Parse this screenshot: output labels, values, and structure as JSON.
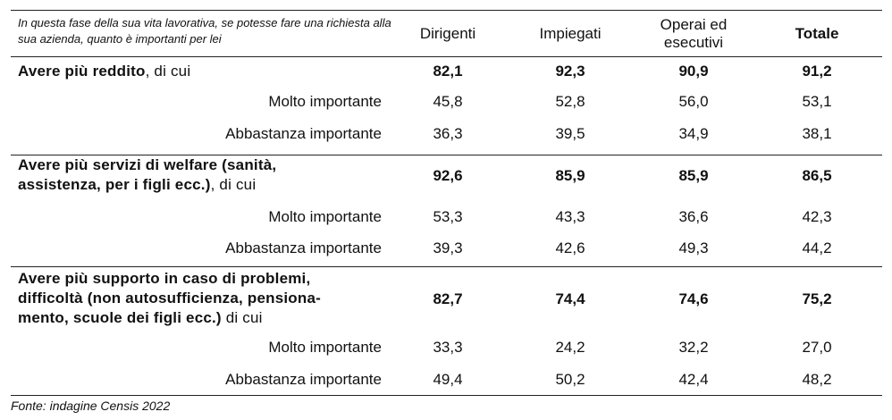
{
  "header": {
    "intro": "In questa fase della sua vita lavorativa, se potesse fare una richiesta alla sua azienda, quanto è importanti per lei",
    "columns": [
      "Dirigenti",
      "Impiegati",
      "Operai ed esecutivi",
      "Totale"
    ]
  },
  "sections": [
    {
      "title_bold": "Avere più reddito",
      "title_suffix": ", di cui",
      "values": [
        "82,1",
        "92,3",
        "90,9",
        "91,2"
      ],
      "sub": [
        {
          "label": "Molto importante",
          "values": [
            "45,8",
            "52,8",
            "56,0",
            "53,1"
          ]
        },
        {
          "label": "Abbastanza importante",
          "values": [
            "36,3",
            "39,5",
            "34,9",
            "38,1"
          ]
        }
      ]
    },
    {
      "title_bold": "Avere più servizi di welfare (sanità, assistenza, per i figli ecc.)",
      "title_suffix": ", di cui",
      "values": [
        "92,6",
        "85,9",
        "85,9",
        "86,5"
      ],
      "sub": [
        {
          "label": "Molto importante",
          "values": [
            "53,3",
            "43,3",
            "36,6",
            "42,3"
          ]
        },
        {
          "label": "Abbastanza importante",
          "values": [
            "39,3",
            "42,6",
            "49,3",
            "44,2"
          ]
        }
      ]
    },
    {
      "title_bold": "Avere più supporto in caso di problemi, difficoltà (non autosufficienza, pensiona-mento, scuole dei figli ecc.)",
      "title_suffix": " di cui",
      "values": [
        "82,7",
        "74,4",
        "74,6",
        "75,2"
      ],
      "sub": [
        {
          "label": "Molto importante",
          "values": [
            "33,3",
            "24,2",
            "32,2",
            "27,0"
          ]
        },
        {
          "label": "Abbastanza importante",
          "values": [
            "49,4",
            "50,2",
            "42,4",
            "48,2"
          ]
        }
      ]
    }
  ],
  "source": "Fonte: indagine Censis 2022"
}
